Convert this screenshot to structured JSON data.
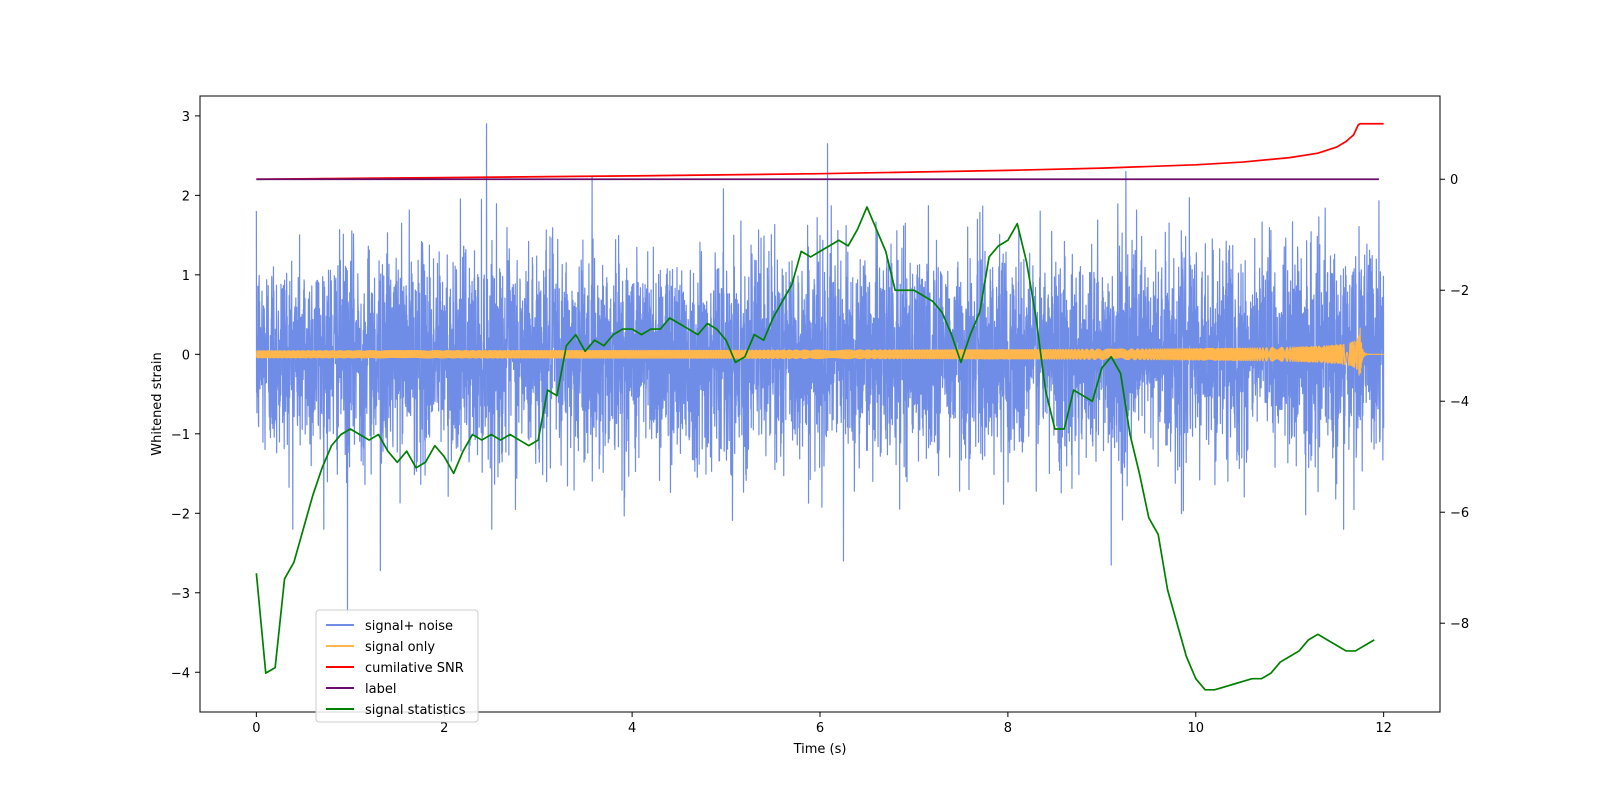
{
  "chart_data": {
    "type": "line",
    "title": "",
    "xlabel": "Time (s)",
    "ylabel": "Whitened strain",
    "y2label": "",
    "xlim": [
      -0.6,
      12.6
    ],
    "ylim": [
      -4.5,
      3.25
    ],
    "y2lim": [
      -9.6,
      1.5
    ],
    "xticks": [
      0,
      2,
      4,
      6,
      8,
      10,
      12
    ],
    "yticks": [
      -4,
      -3,
      -2,
      -1,
      0,
      1,
      2,
      3
    ],
    "y2ticks": [
      -8,
      -6,
      -4,
      -2,
      0
    ],
    "grid": false,
    "legend_placement": "lower-left",
    "series": [
      {
        "name": "signal+ noise",
        "axis": "left",
        "color": "#6f8ce6",
        "kind": "noise",
        "x_range": [
          0,
          12
        ],
        "noise_std": 0.65,
        "peaks": [
          [
            2.45,
            2.9
          ],
          [
            6.08,
            2.65
          ],
          [
            0.97,
            -3.25
          ],
          [
            1.32,
            -2.72
          ],
          [
            6.25,
            -2.6
          ],
          [
            9.1,
            -2.65
          ]
        ]
      },
      {
        "name": "signal only",
        "axis": "left",
        "color": "#ffb74d",
        "kind": "chirp",
        "x_range": [
          0,
          12
        ],
        "merger_time": 11.75,
        "peak_amplitude": 0.33
      },
      {
        "name": "cumilative SNR",
        "axis": "right",
        "color": "#ff0000",
        "x": [
          0,
          2,
          4,
          6,
          8,
          9,
          10,
          10.5,
          11,
          11.3,
          11.5,
          11.6,
          11.68,
          11.73,
          11.75,
          12
        ],
        "y": [
          0,
          0.03,
          0.06,
          0.1,
          0.16,
          0.2,
          0.26,
          0.31,
          0.39,
          0.47,
          0.58,
          0.68,
          0.8,
          0.98,
          1.0,
          1.0
        ]
      },
      {
        "name": "label",
        "axis": "right",
        "color": "#6a0d6a",
        "x": [
          0,
          11.95
        ],
        "y": [
          0,
          0
        ]
      },
      {
        "name": "signal statistics",
        "axis": "right",
        "color": "#008000",
        "x": [
          0,
          0.1,
          0.2,
          0.3,
          0.4,
          0.5,
          0.6,
          0.7,
          0.8,
          0.9,
          1.0,
          1.1,
          1.2,
          1.3,
          1.4,
          1.5,
          1.6,
          1.7,
          1.8,
          1.9,
          2.0,
          2.1,
          2.2,
          2.3,
          2.4,
          2.5,
          2.6,
          2.7,
          2.8,
          2.9,
          3.0,
          3.1,
          3.2,
          3.3,
          3.4,
          3.5,
          3.6,
          3.7,
          3.8,
          3.9,
          4.0,
          4.1,
          4.2,
          4.3,
          4.4,
          4.5,
          4.6,
          4.7,
          4.8,
          4.9,
          5.0,
          5.1,
          5.2,
          5.3,
          5.4,
          5.5,
          5.6,
          5.7,
          5.8,
          5.9,
          6.0,
          6.1,
          6.2,
          6.3,
          6.4,
          6.5,
          6.6,
          6.7,
          6.8,
          6.9,
          7.0,
          7.1,
          7.2,
          7.3,
          7.4,
          7.5,
          7.6,
          7.7,
          7.8,
          7.9,
          8.0,
          8.1,
          8.2,
          8.3,
          8.4,
          8.5,
          8.6,
          8.7,
          8.8,
          8.9,
          9.0,
          9.1,
          9.2,
          9.3,
          9.4,
          9.5,
          9.6,
          9.7,
          9.8,
          9.9,
          10.0,
          10.1,
          10.2,
          10.3,
          10.4,
          10.5,
          10.6,
          10.7,
          10.8,
          10.9,
          11.0,
          11.1,
          11.2,
          11.3,
          11.4,
          11.5,
          11.6,
          11.7,
          11.8,
          11.9
        ],
        "y": [
          -7.1,
          -8.9,
          -8.8,
          -7.2,
          -6.9,
          -6.3,
          -5.7,
          -5.2,
          -4.8,
          -4.6,
          -4.5,
          -4.6,
          -4.7,
          -4.6,
          -4.9,
          -5.1,
          -4.9,
          -5.2,
          -5.1,
          -4.8,
          -5.0,
          -5.3,
          -4.9,
          -4.6,
          -4.7,
          -4.6,
          -4.7,
          -4.6,
          -4.7,
          -4.8,
          -4.7,
          -3.8,
          -3.9,
          -3.0,
          -2.8,
          -3.1,
          -2.9,
          -3.0,
          -2.8,
          -2.7,
          -2.7,
          -2.8,
          -2.7,
          -2.7,
          -2.5,
          -2.6,
          -2.7,
          -2.8,
          -2.6,
          -2.7,
          -2.9,
          -3.3,
          -3.2,
          -2.8,
          -2.9,
          -2.5,
          -2.2,
          -1.9,
          -1.3,
          -1.4,
          -1.3,
          -1.2,
          -1.1,
          -1.2,
          -0.9,
          -0.5,
          -0.9,
          -1.3,
          -2.0,
          -2.0,
          -2.0,
          -2.1,
          -2.2,
          -2.4,
          -2.8,
          -3.3,
          -2.8,
          -2.4,
          -1.4,
          -1.2,
          -1.1,
          -0.8,
          -1.5,
          -2.5,
          -3.8,
          -4.5,
          -4.5,
          -3.8,
          -3.9,
          -4.0,
          -3.4,
          -3.2,
          -3.5,
          -4.6,
          -5.3,
          -6.1,
          -6.4,
          -7.4,
          -8.0,
          -8.6,
          -9.0,
          -9.2,
          -9.2,
          -9.15,
          -9.1,
          -9.05,
          -9.0,
          -9.0,
          -8.9,
          -8.7,
          -8.6,
          -8.5,
          -8.3,
          -8.2,
          -8.3,
          -8.4,
          -8.5,
          -8.5,
          -8.4,
          -8.3
        ]
      }
    ]
  }
}
